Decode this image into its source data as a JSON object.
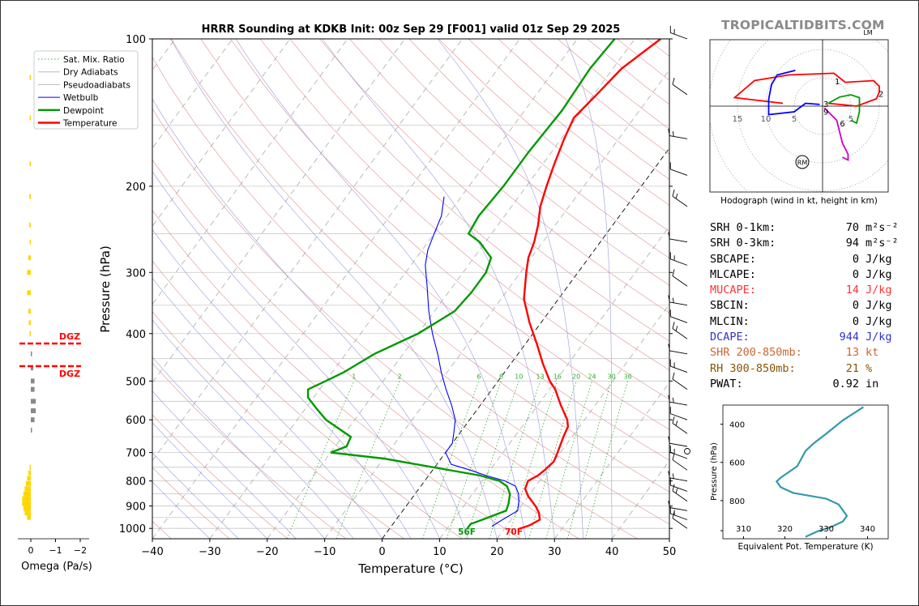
{
  "title": "HRRR Sounding at KDKB Init: 00z Sep 29 [F001] valid 01z Sep 29 2025",
  "brand": "TROPICALTIDBITS.COM",
  "colors": {
    "temperature": "#ff0000",
    "dewpoint": "#009900",
    "wetbulb": "#0000ff",
    "dgz": "#ff0000",
    "omega_up": "#ffd700",
    "omega_down": "#888888",
    "theta_e": "#3399aa",
    "pink": "#cc00cc"
  },
  "skewt": {
    "xlabel": "Temperature (°C)",
    "ylabel": "Pressure (hPa)",
    "xticks": [
      "−40",
      "−30",
      "−20",
      "−10",
      "0",
      "10",
      "20",
      "30",
      "40",
      "50"
    ],
    "xvalues": [
      -40,
      -30,
      -20,
      -10,
      0,
      10,
      20,
      30,
      40,
      50
    ],
    "yticks": [
      "100",
      "200",
      "300",
      "400",
      "500",
      "600",
      "700",
      "800",
      "900",
      "1000"
    ],
    "yvalues": [
      100,
      200,
      300,
      400,
      500,
      600,
      700,
      800,
      900,
      1000
    ],
    "xlim": [
      -40,
      50
    ],
    "plim": [
      1050,
      100
    ],
    "legend": [
      "Sat. Mix. Ratio",
      "Dry Adiabats",
      "Pseudoadiabats",
      "Wetbulb",
      "Dewpoint",
      "Temperature"
    ],
    "mixing_labels": [
      "1",
      "2",
      "6",
      "8",
      "10",
      "13",
      "16",
      "20",
      "24",
      "30",
      "36"
    ],
    "mixing_values": [
      1,
      2,
      6,
      8,
      10,
      13,
      16,
      20,
      24,
      30,
      36
    ],
    "surface_dewpoint_label": "56F",
    "surface_temp_label": "70F",
    "temperature": [
      [
        1003,
        22.5
      ],
      [
        985,
        24
      ],
      [
        960,
        25
      ],
      [
        930,
        24
      ],
      [
        900,
        22.5
      ],
      [
        860,
        20
      ],
      [
        830,
        18.5
      ],
      [
        800,
        18
      ],
      [
        780,
        19
      ],
      [
        760,
        19.5
      ],
      [
        730,
        20
      ],
      [
        700,
        19.5
      ],
      [
        650,
        18.5
      ],
      [
        620,
        18
      ],
      [
        600,
        17
      ],
      [
        560,
        14
      ],
      [
        520,
        11
      ],
      [
        500,
        9
      ],
      [
        460,
        5.5
      ],
      [
        420,
        2
      ],
      [
        380,
        -2
      ],
      [
        340,
        -6
      ],
      [
        300,
        -9
      ],
      [
        280,
        -10.5
      ],
      [
        260,
        -11.5
      ],
      [
        240,
        -13
      ],
      [
        220,
        -15
      ],
      [
        200,
        -16.5
      ],
      [
        180,
        -18
      ],
      [
        160,
        -19.5
      ],
      [
        145,
        -20.5
      ],
      [
        130,
        -19.5
      ],
      [
        115,
        -18.5
      ],
      [
        100,
        -15.5
      ]
    ],
    "dewpoint": [
      [
        1000,
        13.5
      ],
      [
        980,
        13.5
      ],
      [
        960,
        15
      ],
      [
        920,
        18
      ],
      [
        890,
        17.5
      ],
      [
        850,
        16.5
      ],
      [
        820,
        15
      ],
      [
        800,
        13
      ],
      [
        780,
        9
      ],
      [
        720,
        -10
      ],
      [
        700,
        -20
      ],
      [
        680,
        -18
      ],
      [
        650,
        -18.5
      ],
      [
        600,
        -25
      ],
      [
        570,
        -28
      ],
      [
        540,
        -31
      ],
      [
        520,
        -32
      ],
      [
        500,
        -30
      ],
      [
        480,
        -28
      ],
      [
        440,
        -25
      ],
      [
        400,
        -20
      ],
      [
        360,
        -16.5
      ],
      [
        330,
        -16
      ],
      [
        300,
        -16
      ],
      [
        280,
        -17
      ],
      [
        260,
        -21
      ],
      [
        250,
        -24
      ],
      [
        230,
        -24.5
      ],
      [
        200,
        -24
      ],
      [
        170,
        -24
      ],
      [
        140,
        -23.5
      ],
      [
        115,
        -24
      ],
      [
        100,
        -23.5
      ]
    ],
    "wetbulb": [
      [
        990,
        17.5
      ],
      [
        960,
        18.5
      ],
      [
        920,
        20
      ],
      [
        880,
        19
      ],
      [
        850,
        18
      ],
      [
        820,
        16.5
      ],
      [
        800,
        14
      ],
      [
        780,
        10
      ],
      [
        760,
        6.5
      ],
      [
        740,
        2.5
      ],
      [
        700,
        0
      ],
      [
        670,
        0
      ],
      [
        640,
        -1
      ],
      [
        600,
        -2.5
      ],
      [
        560,
        -5
      ],
      [
        520,
        -8
      ],
      [
        480,
        -11
      ],
      [
        440,
        -14
      ],
      [
        400,
        -17.5
      ],
      [
        360,
        -21
      ],
      [
        320,
        -24.5
      ],
      [
        290,
        -27.5
      ],
      [
        270,
        -29
      ],
      [
        250,
        -30
      ],
      [
        230,
        -31
      ],
      [
        210,
        -33
      ]
    ]
  },
  "omega": {
    "xlabel": "Omega (Pa/s)",
    "xticks": [
      "0",
      "−1",
      "−2"
    ],
    "xvalues": [
      0,
      -1,
      -2
    ],
    "dgz_label_top": "DGZ",
    "dgz_label_bottom": "DGZ",
    "dgz_pressures": [
      420,
      468
    ],
    "values": [
      [
        120,
        0.05
      ],
      [
        145,
        0.05
      ],
      [
        180,
        0.05
      ],
      [
        210,
        0.06
      ],
      [
        240,
        0.06
      ],
      [
        260,
        0.05
      ],
      [
        280,
        0.1
      ],
      [
        300,
        0.15
      ],
      [
        330,
        0.15
      ],
      [
        360,
        0.1
      ],
      [
        380,
        0.08
      ],
      [
        400,
        0.05
      ],
      [
        440,
        -0.05
      ],
      [
        470,
        -0.1
      ],
      [
        500,
        -0.15
      ],
      [
        520,
        -0.15
      ],
      [
        550,
        -0.2
      ],
      [
        575,
        -0.2
      ],
      [
        600,
        -0.15
      ],
      [
        630,
        -0.05
      ],
      [
        750,
        0.05
      ],
      [
        770,
        0.1
      ],
      [
        790,
        0.15
      ],
      [
        810,
        0.2
      ],
      [
        830,
        0.25
      ],
      [
        850,
        0.3
      ],
      [
        870,
        0.35
      ],
      [
        890,
        0.35
      ],
      [
        910,
        0.3
      ],
      [
        930,
        0.25
      ],
      [
        950,
        0.15
      ]
    ]
  },
  "hodograph": {
    "caption": "Hodograph (wind in kt, height in km)",
    "ring_labels": [
      "15",
      "10",
      "5",
      "5"
    ],
    "height_labels": [
      "1",
      "2",
      "3",
      "6",
      "9"
    ],
    "rm_label": "RM",
    "lm_label": "LM"
  },
  "stats": [
    {
      "label": "SRH 0-1km:",
      "value": "70",
      "unit": "m²s⁻²",
      "color": "#000000"
    },
    {
      "label": "SRH 0-3km:",
      "value": "94",
      "unit": "m²s⁻²",
      "color": "#000000"
    },
    {
      "label": "SBCAPE:",
      "value": "0",
      "unit": "J/kg",
      "color": "#000000"
    },
    {
      "label": "MLCAPE:",
      "value": "0",
      "unit": "J/kg",
      "color": "#000000"
    },
    {
      "label": "MUCAPE:",
      "value": "14",
      "unit": "J/kg",
      "color": "#ff3333"
    },
    {
      "label": "SBCIN:",
      "value": "0",
      "unit": "J/kg",
      "color": "#000000"
    },
    {
      "label": "MLCIN:",
      "value": "0",
      "unit": "J/kg",
      "color": "#000000"
    },
    {
      "label": "DCAPE:",
      "value": "944",
      "unit": "J/kg",
      "color": "#3333cc"
    },
    {
      "label": "SHR 200-850mb:",
      "value": "13",
      "unit": "kt",
      "color": "#cc6633"
    },
    {
      "label": "RH 300-850mb:",
      "value": "21",
      "unit": "%",
      "color": "#885500"
    },
    {
      "label": "PWAT:",
      "value": "0.92",
      "unit": "in",
      "color": "#000000"
    }
  ],
  "theta_e": {
    "xlabel": "Equivalent Pot. Temperature (K)",
    "ylabel": "Pressure (hPa)",
    "xticks": [
      "310",
      "320",
      "330",
      "340"
    ],
    "xvalues": [
      310,
      320,
      330,
      340
    ],
    "yticks": [
      "400",
      "600",
      "800"
    ],
    "yvalues": [
      400,
      600,
      800
    ],
    "xlim": [
      305,
      345
    ],
    "plim": [
      300,
      1000
    ],
    "values": [
      [
        310,
        339
      ],
      [
        380,
        334
      ],
      [
        450,
        330
      ],
      [
        500,
        327
      ],
      [
        540,
        325
      ],
      [
        580,
        324
      ],
      [
        620,
        323
      ],
      [
        650,
        321
      ],
      [
        680,
        319
      ],
      [
        700,
        318
      ],
      [
        730,
        319
      ],
      [
        760,
        322
      ],
      [
        790,
        330
      ],
      [
        820,
        333
      ],
      [
        850,
        334
      ],
      [
        880,
        335
      ],
      [
        910,
        334
      ],
      [
        940,
        331
      ],
      [
        960,
        328
      ],
      [
        980,
        326
      ],
      [
        990,
        325
      ]
    ]
  }
}
